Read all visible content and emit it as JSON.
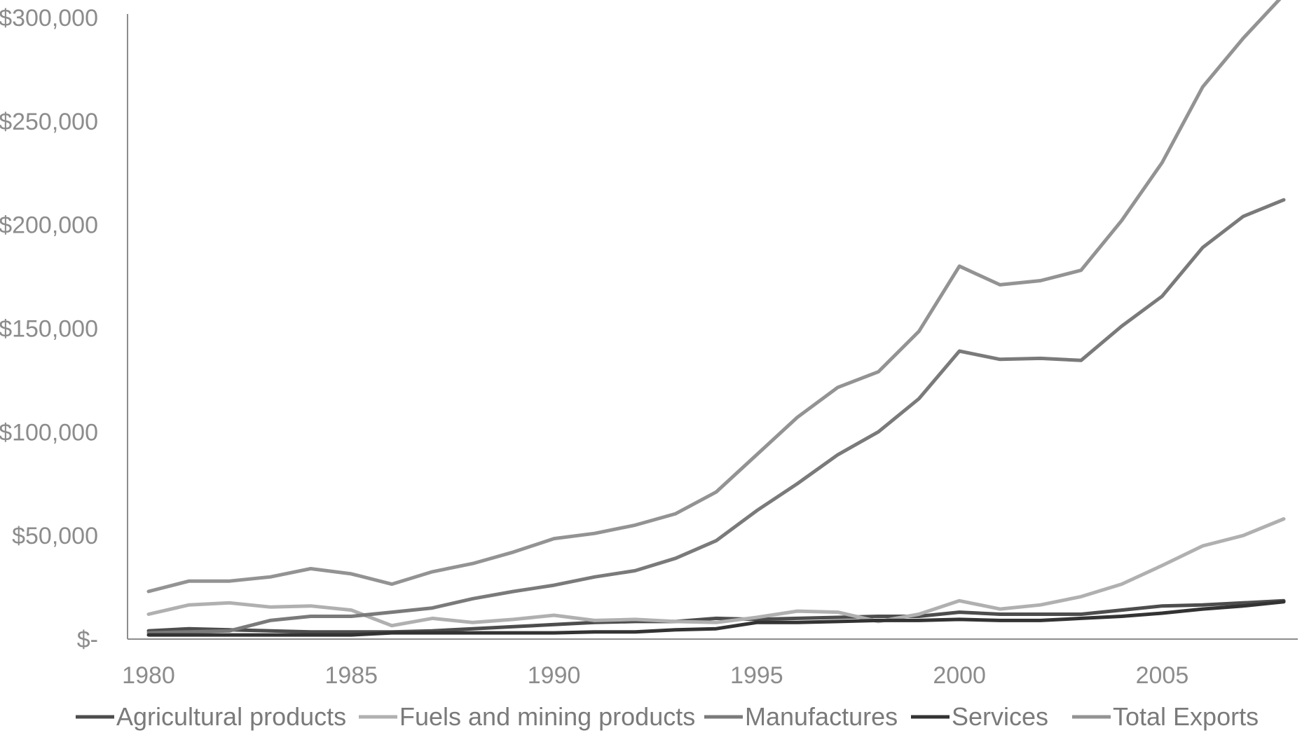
{
  "chart_data": {
    "type": "line",
    "title": "",
    "xlabel": "",
    "ylabel": "",
    "x": [
      1980,
      1981,
      1982,
      1983,
      1984,
      1985,
      1986,
      1987,
      1988,
      1989,
      1990,
      1991,
      1992,
      1993,
      1994,
      1995,
      1996,
      1997,
      1998,
      1999,
      2000,
      2001,
      2002,
      2003,
      2004,
      2005,
      2006,
      2007,
      2008
    ],
    "xlim": [
      1980,
      2008
    ],
    "ylim": [
      0,
      300000
    ],
    "x_ticks": [
      1980,
      1985,
      1990,
      1995,
      2000,
      2005
    ],
    "x_tick_labels": [
      "1980",
      "1985",
      "1990",
      "1995",
      "2000",
      "2005"
    ],
    "y_ticks": [
      0,
      50000,
      100000,
      150000,
      200000,
      250000,
      300000
    ],
    "y_tick_labels": [
      "$-",
      "$50,000",
      "$100,000",
      "$150,000",
      "$200,000",
      "$250,000",
      "$300,000"
    ],
    "grid": false,
    "legend_position": "bottom",
    "series": [
      {
        "name": "Agricultural products",
        "color": "#4d4d4d",
        "values": [
          4000,
          5000,
          4500,
          4000,
          3500,
          3500,
          3500,
          4000,
          5000,
          6000,
          7000,
          8000,
          8500,
          8500,
          10000,
          9500,
          10000,
          10500,
          11000,
          11000,
          13000,
          12000,
          12000,
          12000,
          14000,
          16000,
          16500,
          17500,
          18500
        ]
      },
      {
        "name": "Fuels and mining products",
        "color": "#b0b0b0",
        "values": [
          12000,
          16500,
          17500,
          15500,
          16000,
          14000,
          6500,
          10000,
          8000,
          9500,
          11500,
          9000,
          9500,
          8500,
          8000,
          10500,
          13500,
          13000,
          8500,
          12000,
          18500,
          14500,
          16500,
          20500,
          26500,
          35500,
          45000,
          50000,
          58000
        ]
      },
      {
        "name": "Manufactures",
        "color": "#7a7a7a",
        "values": [
          3000,
          3500,
          4000,
          9000,
          11000,
          11000,
          13000,
          15000,
          19500,
          23000,
          26000,
          30000,
          33000,
          39000,
          47500,
          62000,
          75000,
          89000,
          100000,
          116000,
          139000,
          135000,
          135500,
          134500,
          151000,
          165500,
          189000,
          204000,
          212000
        ]
      },
      {
        "name": "Services",
        "color": "#333333",
        "values": [
          2000,
          2000,
          2000,
          2000,
          2000,
          2000,
          3000,
          3000,
          3000,
          3000,
          3000,
          3500,
          3500,
          4500,
          5000,
          8000,
          8000,
          8500,
          9000,
          9000,
          9500,
          9000,
          9000,
          10000,
          11000,
          12500,
          14500,
          16000,
          18000
        ]
      },
      {
        "name": "Total Exports",
        "color": "#939393",
        "values": [
          23000,
          28000,
          28000,
          30000,
          34000,
          31500,
          26500,
          32500,
          36500,
          42000,
          48500,
          51000,
          55000,
          60500,
          71000,
          89000,
          107000,
          121500,
          129000,
          148500,
          180000,
          171000,
          173000,
          178000,
          202000,
          230000,
          266500,
          290000,
          311000
        ]
      }
    ]
  }
}
